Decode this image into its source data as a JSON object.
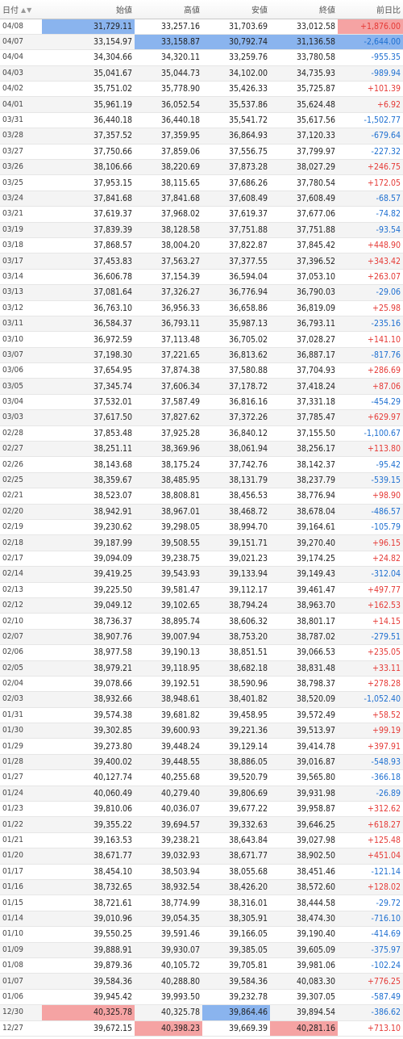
{
  "header": {
    "date": "日付",
    "open": "始値",
    "high": "高値",
    "low": "安値",
    "close": "終値",
    "change": "前日比"
  },
  "sort_icons": "▲▼",
  "rows": [
    {
      "date": "04/08",
      "open": "31,729.11",
      "high": "33,257.16",
      "low": "31,703.69",
      "close": "33,012.58",
      "change": "+1,876.00",
      "hl": {
        "open": "blue",
        "change": "red"
      }
    },
    {
      "date": "04/07",
      "open": "33,154.97",
      "high": "33,158.87",
      "low": "30,792.74",
      "close": "31,136.58",
      "change": "-2,644.00",
      "hl": {
        "high": "blue",
        "low": "blue",
        "close": "blue",
        "change": "blue"
      }
    },
    {
      "date": "04/04",
      "open": "34,304.66",
      "high": "34,320.11",
      "low": "33,259.76",
      "close": "33,780.58",
      "change": "-955.35"
    },
    {
      "date": "04/03",
      "open": "35,041.67",
      "high": "35,044.73",
      "low": "34,102.00",
      "close": "34,735.93",
      "change": "-989.94"
    },
    {
      "date": "04/02",
      "open": "35,751.02",
      "high": "35,778.90",
      "low": "35,426.33",
      "close": "35,725.87",
      "change": "+101.39"
    },
    {
      "date": "04/01",
      "open": "35,961.19",
      "high": "36,052.54",
      "low": "35,537.86",
      "close": "35,624.48",
      "change": "+6.92"
    },
    {
      "date": "03/31",
      "open": "36,440.18",
      "high": "36,440.18",
      "low": "35,541.72",
      "close": "35,617.56",
      "change": "-1,502.77"
    },
    {
      "date": "03/28",
      "open": "37,357.52",
      "high": "37,359.95",
      "low": "36,864.93",
      "close": "37,120.33",
      "change": "-679.64"
    },
    {
      "date": "03/27",
      "open": "37,750.66",
      "high": "37,859.06",
      "low": "37,556.75",
      "close": "37,799.97",
      "change": "-227.32"
    },
    {
      "date": "03/26",
      "open": "38,106.66",
      "high": "38,220.69",
      "low": "37,873.28",
      "close": "38,027.29",
      "change": "+246.75"
    },
    {
      "date": "03/25",
      "open": "37,953.15",
      "high": "38,115.65",
      "low": "37,686.26",
      "close": "37,780.54",
      "change": "+172.05"
    },
    {
      "date": "03/24",
      "open": "37,841.68",
      "high": "37,841.68",
      "low": "37,608.49",
      "close": "37,608.49",
      "change": "-68.57"
    },
    {
      "date": "03/21",
      "open": "37,619.37",
      "high": "37,968.02",
      "low": "37,619.37",
      "close": "37,677.06",
      "change": "-74.82"
    },
    {
      "date": "03/19",
      "open": "37,839.39",
      "high": "38,128.58",
      "low": "37,751.88",
      "close": "37,751.88",
      "change": "-93.54"
    },
    {
      "date": "03/18",
      "open": "37,868.57",
      "high": "38,004.20",
      "low": "37,822.87",
      "close": "37,845.42",
      "change": "+448.90"
    },
    {
      "date": "03/17",
      "open": "37,453.83",
      "high": "37,563.27",
      "low": "37,377.55",
      "close": "37,396.52",
      "change": "+343.42"
    },
    {
      "date": "03/14",
      "open": "36,606.78",
      "high": "37,154.39",
      "low": "36,594.04",
      "close": "37,053.10",
      "change": "+263.07"
    },
    {
      "date": "03/13",
      "open": "37,081.64",
      "high": "37,326.27",
      "low": "36,776.94",
      "close": "36,790.03",
      "change": "-29.06"
    },
    {
      "date": "03/12",
      "open": "36,763.10",
      "high": "36,956.33",
      "low": "36,658.86",
      "close": "36,819.09",
      "change": "+25.98"
    },
    {
      "date": "03/11",
      "open": "36,584.37",
      "high": "36,793.11",
      "low": "35,987.13",
      "close": "36,793.11",
      "change": "-235.16"
    },
    {
      "date": "03/10",
      "open": "36,972.59",
      "high": "37,113.48",
      "low": "36,705.02",
      "close": "37,028.27",
      "change": "+141.10"
    },
    {
      "date": "03/07",
      "open": "37,198.30",
      "high": "37,221.65",
      "low": "36,813.62",
      "close": "36,887.17",
      "change": "-817.76"
    },
    {
      "date": "03/06",
      "open": "37,654.95",
      "high": "37,874.38",
      "low": "37,580.88",
      "close": "37,704.93",
      "change": "+286.69"
    },
    {
      "date": "03/05",
      "open": "37,345.74",
      "high": "37,606.34",
      "low": "37,178.72",
      "close": "37,418.24",
      "change": "+87.06"
    },
    {
      "date": "03/04",
      "open": "37,532.01",
      "high": "37,587.49",
      "low": "36,816.16",
      "close": "37,331.18",
      "change": "-454.29"
    },
    {
      "date": "03/03",
      "open": "37,617.50",
      "high": "37,827.62",
      "low": "37,372.26",
      "close": "37,785.47",
      "change": "+629.97"
    },
    {
      "date": "02/28",
      "open": "37,853.48",
      "high": "37,925.28",
      "low": "36,840.12",
      "close": "37,155.50",
      "change": "-1,100.67"
    },
    {
      "date": "02/27",
      "open": "38,251.11",
      "high": "38,369.96",
      "low": "38,061.94",
      "close": "38,256.17",
      "change": "+113.80"
    },
    {
      "date": "02/26",
      "open": "38,143.68",
      "high": "38,175.24",
      "low": "37,742.76",
      "close": "38,142.37",
      "change": "-95.42"
    },
    {
      "date": "02/25",
      "open": "38,359.67",
      "high": "38,485.95",
      "low": "38,131.79",
      "close": "38,237.79",
      "change": "-539.15"
    },
    {
      "date": "02/21",
      "open": "38,523.07",
      "high": "38,808.81",
      "low": "38,456.53",
      "close": "38,776.94",
      "change": "+98.90"
    },
    {
      "date": "02/20",
      "open": "38,942.91",
      "high": "38,967.01",
      "low": "38,468.72",
      "close": "38,678.04",
      "change": "-486.57"
    },
    {
      "date": "02/19",
      "open": "39,230.62",
      "high": "39,298.05",
      "low": "38,994.70",
      "close": "39,164.61",
      "change": "-105.79"
    },
    {
      "date": "02/18",
      "open": "39,187.99",
      "high": "39,508.55",
      "low": "39,151.71",
      "close": "39,270.40",
      "change": "+96.15"
    },
    {
      "date": "02/17",
      "open": "39,094.09",
      "high": "39,238.75",
      "low": "39,021.23",
      "close": "39,174.25",
      "change": "+24.82"
    },
    {
      "date": "02/14",
      "open": "39,419.25",
      "high": "39,543.93",
      "low": "39,133.94",
      "close": "39,149.43",
      "change": "-312.04"
    },
    {
      "date": "02/13",
      "open": "39,225.50",
      "high": "39,581.47",
      "low": "39,112.17",
      "close": "39,461.47",
      "change": "+497.77"
    },
    {
      "date": "02/12",
      "open": "39,049.12",
      "high": "39,102.65",
      "low": "38,794.24",
      "close": "38,963.70",
      "change": "+162.53"
    },
    {
      "date": "02/10",
      "open": "38,736.37",
      "high": "38,895.74",
      "low": "38,606.32",
      "close": "38,801.17",
      "change": "+14.15"
    },
    {
      "date": "02/07",
      "open": "38,907.76",
      "high": "39,007.94",
      "low": "38,753.20",
      "close": "38,787.02",
      "change": "-279.51"
    },
    {
      "date": "02/06",
      "open": "38,977.58",
      "high": "39,190.13",
      "low": "38,851.51",
      "close": "39,066.53",
      "change": "+235.05"
    },
    {
      "date": "02/05",
      "open": "38,979.21",
      "high": "39,118.95",
      "low": "38,682.18",
      "close": "38,831.48",
      "change": "+33.11"
    },
    {
      "date": "02/04",
      "open": "39,078.66",
      "high": "39,192.51",
      "low": "38,590.96",
      "close": "38,798.37",
      "change": "+278.28"
    },
    {
      "date": "02/03",
      "open": "38,932.66",
      "high": "38,948.61",
      "low": "38,401.82",
      "close": "38,520.09",
      "change": "-1,052.40"
    },
    {
      "date": "01/31",
      "open": "39,574.38",
      "high": "39,681.82",
      "low": "39,458.95",
      "close": "39,572.49",
      "change": "+58.52"
    },
    {
      "date": "01/30",
      "open": "39,302.85",
      "high": "39,600.93",
      "low": "39,221.36",
      "close": "39,513.97",
      "change": "+99.19"
    },
    {
      "date": "01/29",
      "open": "39,273.80",
      "high": "39,448.24",
      "low": "39,129.14",
      "close": "39,414.78",
      "change": "+397.91"
    },
    {
      "date": "01/28",
      "open": "39,400.02",
      "high": "39,448.55",
      "low": "38,886.05",
      "close": "39,016.87",
      "change": "-548.93"
    },
    {
      "date": "01/27",
      "open": "40,127.74",
      "high": "40,255.68",
      "low": "39,520.79",
      "close": "39,565.80",
      "change": "-366.18"
    },
    {
      "date": "01/24",
      "open": "40,060.49",
      "high": "40,279.40",
      "low": "39,806.69",
      "close": "39,931.98",
      "change": "-26.89"
    },
    {
      "date": "01/23",
      "open": "39,810.06",
      "high": "40,036.07",
      "low": "39,677.22",
      "close": "39,958.87",
      "change": "+312.62"
    },
    {
      "date": "01/22",
      "open": "39,355.22",
      "high": "39,694.57",
      "low": "39,332.63",
      "close": "39,646.25",
      "change": "+618.27"
    },
    {
      "date": "01/21",
      "open": "39,163.53",
      "high": "39,238.21",
      "low": "38,643.84",
      "close": "39,027.98",
      "change": "+125.48"
    },
    {
      "date": "01/20",
      "open": "38,671.77",
      "high": "39,032.93",
      "low": "38,671.77",
      "close": "38,902.50",
      "change": "+451.04"
    },
    {
      "date": "01/17",
      "open": "38,454.10",
      "high": "38,503.94",
      "low": "38,055.68",
      "close": "38,451.46",
      "change": "-121.14"
    },
    {
      "date": "01/16",
      "open": "38,732.65",
      "high": "38,932.54",
      "low": "38,426.20",
      "close": "38,572.60",
      "change": "+128.02"
    },
    {
      "date": "01/15",
      "open": "38,721.61",
      "high": "38,774.99",
      "low": "38,316.01",
      "close": "38,444.58",
      "change": "-29.72"
    },
    {
      "date": "01/14",
      "open": "39,010.96",
      "high": "39,054.35",
      "low": "38,305.91",
      "close": "38,474.30",
      "change": "-716.10"
    },
    {
      "date": "01/10",
      "open": "39,550.25",
      "high": "39,591.46",
      "low": "39,166.05",
      "close": "39,190.40",
      "change": "-414.69"
    },
    {
      "date": "01/09",
      "open": "39,888.91",
      "high": "39,930.07",
      "low": "39,385.05",
      "close": "39,605.09",
      "change": "-375.97"
    },
    {
      "date": "01/08",
      "open": "39,879.36",
      "high": "40,105.72",
      "low": "39,705.81",
      "close": "39,981.06",
      "change": "-102.24"
    },
    {
      "date": "01/07",
      "open": "39,584.36",
      "high": "40,288.80",
      "low": "39,584.36",
      "close": "40,083.30",
      "change": "+776.25"
    },
    {
      "date": "01/06",
      "open": "39,945.42",
      "high": "39,993.50",
      "low": "39,232.78",
      "close": "39,307.05",
      "change": "-587.49"
    },
    {
      "date": "12/30",
      "open": "40,325.78",
      "high": "40,325.78",
      "low": "39,864.46",
      "close": "39,894.54",
      "change": "-386.62",
      "hl": {
        "open": "red",
        "low": "blue"
      }
    },
    {
      "date": "12/27",
      "open": "39,672.15",
      "high": "40,398.23",
      "low": "39,669.39",
      "close": "40,281.16",
      "change": "+713.10",
      "hl": {
        "high": "red",
        "close": "red"
      }
    }
  ]
}
